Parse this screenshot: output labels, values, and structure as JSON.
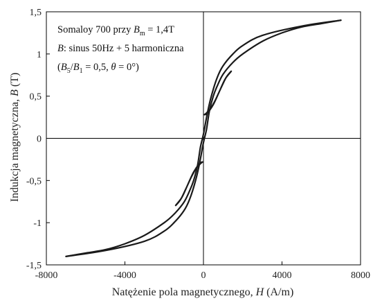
{
  "chart_data": {
    "type": "line",
    "xlabel_main": "Natężenie pola magnetycznego, ",
    "xlabel_var": "H",
    "xlabel_unit": " (A/m)",
    "ylabel_main": "Indukcja magnetyczna, ",
    "ylabel_var": "B",
    "ylabel_unit": " (T)",
    "xlim": [
      -8000,
      8000
    ],
    "ylim": [
      -1.5,
      1.5
    ],
    "x_ticks": [
      -8000,
      -4000,
      0,
      4000,
      8000
    ],
    "x_tick_labels": [
      "-8000",
      "-4000",
      "0",
      "4000",
      "8000"
    ],
    "y_ticks": [
      -1.5,
      -1,
      -0.5,
      0,
      0.5,
      1,
      1.5
    ],
    "y_tick_labels": [
      "-1,5",
      "-1",
      "-0,5",
      "0",
      "0,5",
      "1",
      "1,5"
    ],
    "annotation": {
      "line1_prefix": "Somaloy 700 przy ",
      "line1_var": "B",
      "line1_sub": "m",
      "line1_suffix": " = 1,4T",
      "line2_var": "B",
      "line2_rest": ": sinus 50Hz + 5 harmoniczna",
      "line3_open": "(",
      "line3_var_a": "B",
      "line3_sub_a": "5",
      "line3_slash": "/",
      "line3_var_b": "B",
      "line3_sub_b": "1",
      "line3_mid": " = 0,5, ",
      "line3_theta": "θ",
      "line3_end": " = 0°)"
    },
    "series": [
      {
        "part": "ascending-branch",
        "x": [
          -7000,
          -5000,
          -3000,
          -2000,
          -1500,
          -1000,
          -700,
          -400,
          -200,
          0,
          150,
          300,
          500,
          700,
          1000,
          1500,
          2000,
          3000,
          4000,
          5000,
          6000,
          7000
        ],
        "y": [
          -1.4,
          -1.33,
          -1.22,
          -1.1,
          -1.0,
          -0.86,
          -0.72,
          -0.5,
          -0.3,
          -0.05,
          0.1,
          0.32,
          0.5,
          0.62,
          0.76,
          0.9,
          1.0,
          1.15,
          1.25,
          1.32,
          1.36,
          1.4
        ]
      },
      {
        "part": "descending-branch",
        "x": [
          7000,
          5000,
          3000,
          2000,
          1500,
          1000,
          700,
          400,
          200,
          0,
          -150,
          -300,
          -500,
          -700,
          -1000,
          -1500,
          -2000,
          -3000,
          -4000,
          -5000,
          -6000,
          -7000
        ],
        "y": [
          1.4,
          1.33,
          1.22,
          1.1,
          1.0,
          0.86,
          0.72,
          0.5,
          0.3,
          0.05,
          -0.1,
          -0.32,
          -0.5,
          -0.62,
          -0.76,
          -0.9,
          -1.0,
          -1.15,
          -1.25,
          -1.32,
          -1.36,
          -1.4
        ]
      },
      {
        "part": "minor-loop-upper",
        "x": [
          50,
          200,
          500,
          800,
          1100,
          1400,
          1350,
          1150,
          900,
          600,
          350,
          150,
          50
        ],
        "y": [
          0.28,
          0.3,
          0.4,
          0.55,
          0.7,
          0.79,
          0.78,
          0.72,
          0.6,
          0.45,
          0.35,
          0.3,
          0.28
        ]
      },
      {
        "part": "minor-loop-lower",
        "x": [
          -50,
          -200,
          -500,
          -800,
          -1100,
          -1400,
          -1350,
          -1150,
          -900,
          -600,
          -350,
          -150,
          -50
        ],
        "y": [
          -0.28,
          -0.3,
          -0.4,
          -0.55,
          -0.7,
          -0.79,
          -0.78,
          -0.72,
          -0.6,
          -0.45,
          -0.35,
          -0.3,
          -0.28
        ]
      }
    ]
  }
}
